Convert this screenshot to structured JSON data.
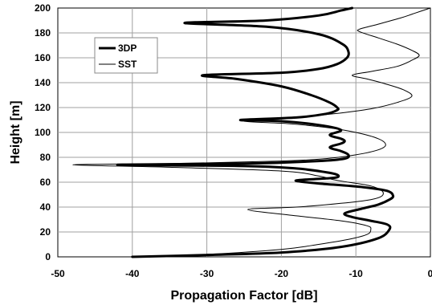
{
  "chart_data": {
    "type": "line",
    "title": "",
    "xlabel": "Propagation Factor [dB]",
    "ylabel": "Height [m]",
    "xlim": [
      -50,
      0
    ],
    "ylim": [
      0,
      200
    ],
    "xticks": [
      -50,
      -40,
      -30,
      -20,
      -10,
      0
    ],
    "xtick_labels": [
      "-50",
      "-40",
      "-30",
      "-20",
      "-10",
      "0"
    ],
    "yticks": [
      0,
      20,
      40,
      60,
      80,
      100,
      120,
      140,
      160,
      180,
      200
    ],
    "ytick_labels": [
      "0",
      "20",
      "40",
      "60",
      "80",
      "100",
      "120",
      "140",
      "160",
      "180",
      "200"
    ],
    "grid": true,
    "legend": "top-left",
    "series": [
      {
        "name": "3DP",
        "color": "#000000",
        "style": "thick",
        "points": [
          [
            -40,
            0
          ],
          [
            -30,
            1.5
          ],
          [
            -20,
            3.5
          ],
          [
            -12,
            8
          ],
          [
            -7,
            15
          ],
          [
            -5.5,
            22
          ],
          [
            -5.8,
            26
          ],
          [
            -8,
            29
          ],
          [
            -10.5,
            32
          ],
          [
            -11.5,
            35
          ],
          [
            -9,
            39
          ],
          [
            -7,
            42
          ],
          [
            -5.5,
            46
          ],
          [
            -5,
            49
          ],
          [
            -5.8,
            53
          ],
          [
            -9,
            56
          ],
          [
            -15,
            59
          ],
          [
            -18,
            61
          ],
          [
            -17,
            62
          ],
          [
            -14,
            63
          ],
          [
            -12.5,
            64
          ],
          [
            -12.5,
            66
          ],
          [
            -14,
            68
          ],
          [
            -18,
            71
          ],
          [
            -25,
            73
          ],
          [
            -42,
            74
          ],
          [
            -25,
            75
          ],
          [
            -15,
            77
          ],
          [
            -11.5,
            79
          ],
          [
            -11,
            82
          ],
          [
            -12,
            85
          ],
          [
            -13.5,
            88
          ],
          [
            -12,
            91
          ],
          [
            -11.5,
            93
          ],
          [
            -12,
            95
          ],
          [
            -13.5,
            98
          ],
          [
            -12,
            102
          ],
          [
            -15,
            106
          ],
          [
            -20,
            109
          ],
          [
            -25.5,
            110
          ],
          [
            -18,
            112
          ],
          [
            -14,
            115
          ],
          [
            -12.5,
            118
          ],
          [
            -12.5,
            120
          ],
          [
            -13.5,
            124
          ],
          [
            -16,
            130
          ],
          [
            -20,
            137
          ],
          [
            -26,
            143
          ],
          [
            -30.5,
            146
          ],
          [
            -20,
            148
          ],
          [
            -15,
            151
          ],
          [
            -12.5,
            155
          ],
          [
            -11.2,
            160
          ],
          [
            -11,
            165
          ],
          [
            -11.8,
            171
          ],
          [
            -15,
            179
          ],
          [
            -22,
            185
          ],
          [
            -33,
            188
          ],
          [
            -22,
            190
          ],
          [
            -15,
            194
          ],
          [
            -12,
            198
          ],
          [
            -10.5,
            200
          ]
        ]
      },
      {
        "name": "SST",
        "color": "#000000",
        "style": "thin",
        "points": [
          [
            -40,
            0
          ],
          [
            -30,
            2
          ],
          [
            -20,
            6
          ],
          [
            -15,
            10
          ],
          [
            -11,
            14
          ],
          [
            -8.5,
            18
          ],
          [
            -8,
            22
          ],
          [
            -8.5,
            25
          ],
          [
            -12,
            29
          ],
          [
            -18,
            33
          ],
          [
            -24.5,
            38
          ],
          [
            -18,
            40
          ],
          [
            -12,
            43
          ],
          [
            -8,
            46
          ],
          [
            -6.5,
            49
          ],
          [
            -6.5,
            53
          ],
          [
            -8,
            57
          ],
          [
            -11,
            60
          ],
          [
            -13,
            62
          ],
          [
            -15,
            65
          ],
          [
            -20,
            69
          ],
          [
            -35,
            72
          ],
          [
            -48,
            74
          ],
          [
            -35,
            75
          ],
          [
            -20,
            77
          ],
          [
            -14,
            79
          ],
          [
            -10,
            82
          ],
          [
            -7,
            86
          ],
          [
            -6,
            90
          ],
          [
            -7,
            95
          ],
          [
            -10,
            100
          ],
          [
            -14,
            104
          ],
          [
            -19,
            107
          ],
          [
            -25,
            109
          ],
          [
            -20,
            111
          ],
          [
            -13,
            115
          ],
          [
            -8,
            119
          ],
          [
            -4.5,
            124
          ],
          [
            -2.5,
            129
          ],
          [
            -3.5,
            134
          ],
          [
            -6,
            139
          ],
          [
            -8.5,
            143
          ],
          [
            -10.5,
            146
          ],
          [
            -8,
            149
          ],
          [
            -4.5,
            153
          ],
          [
            -2.5,
            158
          ],
          [
            -1.5,
            162
          ],
          [
            -2.5,
            166
          ],
          [
            -4.5,
            171
          ],
          [
            -7,
            176
          ],
          [
            -9.5,
            181
          ],
          [
            -9.5,
            183
          ],
          [
            -7,
            187
          ],
          [
            -4,
            192
          ],
          [
            -2,
            196
          ],
          [
            0,
            200
          ]
        ]
      }
    ]
  }
}
